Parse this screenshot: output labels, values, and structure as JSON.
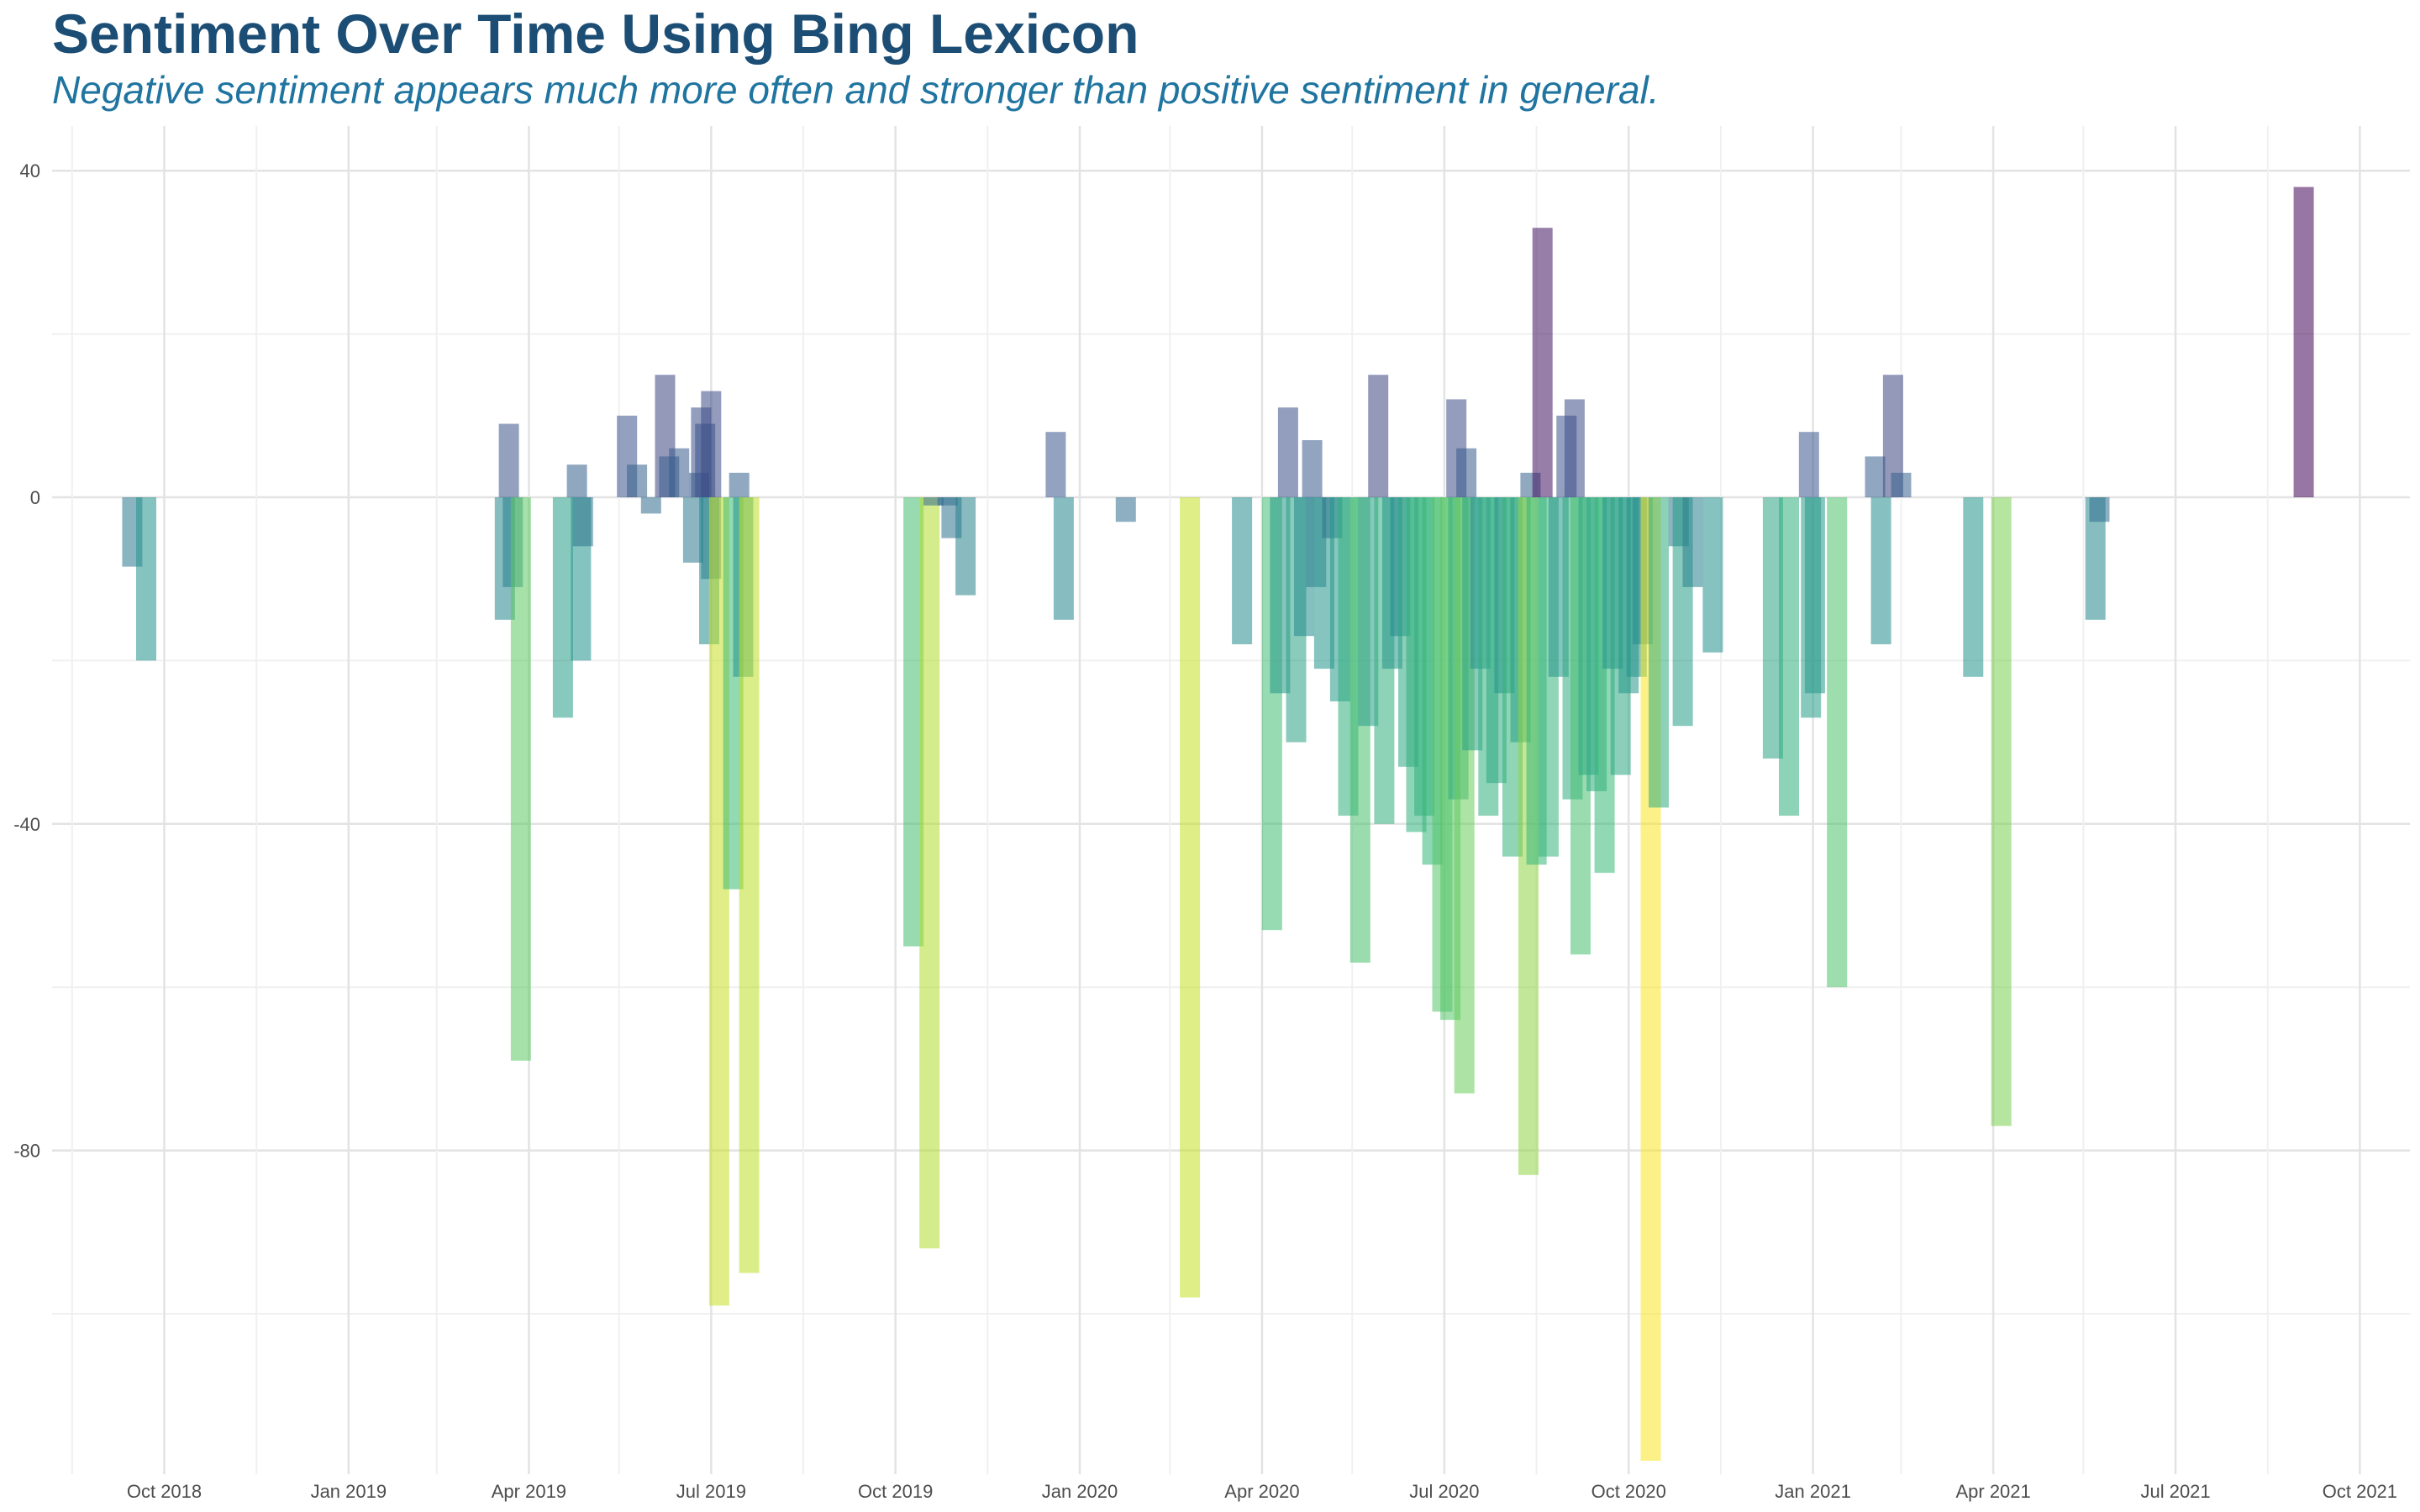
{
  "chart_data": {
    "type": "bar",
    "title": "Sentiment Over Time Using Bing Lexicon",
    "subtitle": "Negative sentiment appears much more often and stronger than positive sentiment in general.",
    "xlabel": "",
    "ylabel": "",
    "x_ticks": [
      "Oct 2018",
      "Jan 2019",
      "Apr 2019",
      "Jul 2019",
      "Oct 2019",
      "Jan 2020",
      "Apr 2020",
      "Jul 2020",
      "Oct 2020",
      "Jan 2021",
      "Apr 2021",
      "Jul 2021",
      "Oct 2021"
    ],
    "y_ticks": [
      "40",
      "0",
      "-40",
      "-80"
    ],
    "ylim": [
      -120,
      45
    ],
    "xlim": [
      "2018-08-06",
      "2021-10-26"
    ],
    "grid": true,
    "legend": "none",
    "colors": [
      "#440154",
      "#3b528b",
      "#21918c",
      "#5ec962",
      "#fde725"
    ],
    "values_by_date": [
      [
        "2018-09-15",
        -8.5
      ],
      [
        "2018-09-22",
        -20
      ],
      [
        "2019-03-20",
        -15
      ],
      [
        "2019-03-22",
        9
      ],
      [
        "2019-03-24",
        -11
      ],
      [
        "2019-03-28",
        -69
      ],
      [
        "2019-04-18",
        -27
      ],
      [
        "2019-04-25",
        4
      ],
      [
        "2019-04-27",
        -20
      ],
      [
        "2019-04-28",
        -6
      ],
      [
        "2019-05-20",
        10
      ],
      [
        "2019-05-25",
        4
      ],
      [
        "2019-06-01",
        -2
      ],
      [
        "2019-06-08",
        15
      ],
      [
        "2019-06-10",
        5
      ],
      [
        "2019-06-15",
        6
      ],
      [
        "2019-06-22",
        -8
      ],
      [
        "2019-06-25",
        3
      ],
      [
        "2019-06-26",
        11
      ],
      [
        "2019-06-28",
        9
      ],
      [
        "2019-07-01",
        13
      ],
      [
        "2019-06-30",
        -18
      ],
      [
        "2019-07-01",
        -10
      ],
      [
        "2019-07-05",
        -99
      ],
      [
        "2019-07-12",
        -48
      ],
      [
        "2019-07-15",
        3
      ],
      [
        "2019-07-17",
        -22
      ],
      [
        "2019-07-20",
        -95
      ],
      [
        "2019-10-10",
        -55
      ],
      [
        "2019-10-18",
        -92
      ],
      [
        "2019-10-20",
        -1
      ],
      [
        "2019-10-27",
        -1
      ],
      [
        "2019-10-29",
        -5
      ],
      [
        "2019-11-05",
        -12
      ],
      [
        "2019-12-20",
        8
      ],
      [
        "2019-12-24",
        -15
      ],
      [
        "2020-01-24",
        -3
      ],
      [
        "2020-02-25",
        -98
      ],
      [
        "2020-03-22",
        -18
      ],
      [
        "2020-04-06",
        -53
      ],
      [
        "2020-04-10",
        -24
      ],
      [
        "2020-04-14",
        11
      ],
      [
        "2020-04-18",
        -30
      ],
      [
        "2020-04-22",
        -17
      ],
      [
        "2020-04-26",
        7
      ],
      [
        "2020-04-28",
        -11
      ],
      [
        "2020-05-02",
        -21
      ],
      [
        "2020-05-06",
        -5
      ],
      [
        "2020-05-10",
        -25
      ],
      [
        "2020-05-14",
        -39
      ],
      [
        "2020-05-20",
        -57
      ],
      [
        "2020-05-24",
        -28
      ],
      [
        "2020-05-29",
        15
      ],
      [
        "2020-06-01",
        -40
      ],
      [
        "2020-06-05",
        -21
      ],
      [
        "2020-06-09",
        -17
      ],
      [
        "2020-06-13",
        -33
      ],
      [
        "2020-06-17",
        -41
      ],
      [
        "2020-06-21",
        -39
      ],
      [
        "2020-06-25",
        -45
      ],
      [
        "2020-06-30",
        -63
      ],
      [
        "2020-07-04",
        -64
      ],
      [
        "2020-07-07",
        12
      ],
      [
        "2020-07-08",
        -37
      ],
      [
        "2020-07-11",
        -73
      ],
      [
        "2020-07-12",
        6
      ],
      [
        "2020-07-15",
        -31
      ],
      [
        "2020-07-19",
        -21
      ],
      [
        "2020-07-23",
        -39
      ],
      [
        "2020-07-27",
        -35
      ],
      [
        "2020-07-31",
        -24
      ],
      [
        "2020-08-04",
        -44
      ],
      [
        "2020-08-08",
        -30
      ],
      [
        "2020-08-12",
        -83
      ],
      [
        "2020-08-13",
        3
      ],
      [
        "2020-08-16",
        -45
      ],
      [
        "2020-08-19",
        33
      ],
      [
        "2020-08-22",
        -44
      ],
      [
        "2020-08-27",
        -22
      ],
      [
        "2020-08-31",
        10
      ],
      [
        "2020-09-03",
        -37
      ],
      [
        "2020-09-04",
        12
      ],
      [
        "2020-09-07",
        -56
      ],
      [
        "2020-09-11",
        -34
      ],
      [
        "2020-09-15",
        -36
      ],
      [
        "2020-09-19",
        -46
      ],
      [
        "2020-09-23",
        -21
      ],
      [
        "2020-09-27",
        -34
      ],
      [
        "2020-10-01",
        -24
      ],
      [
        "2020-10-05",
        -22
      ],
      [
        "2020-10-08",
        -18
      ],
      [
        "2020-10-12",
        -118
      ],
      [
        "2020-10-16",
        -38
      ],
      [
        "2020-10-26",
        -6
      ],
      [
        "2020-10-28",
        -28
      ],
      [
        "2020-11-02",
        -11
      ],
      [
        "2020-11-12",
        -19
      ],
      [
        "2020-12-12",
        -32
      ],
      [
        "2020-12-20",
        -39
      ],
      [
        "2020-12-30",
        8
      ],
      [
        "2020-12-31",
        -27
      ],
      [
        "2021-01-02",
        -24
      ],
      [
        "2021-01-13",
        -60
      ],
      [
        "2021-02-01",
        5
      ],
      [
        "2021-02-04",
        -18
      ],
      [
        "2021-02-10",
        15
      ],
      [
        "2021-02-14",
        3
      ],
      [
        "2021-03-22",
        -22
      ],
      [
        "2021-04-05",
        -77
      ],
      [
        "2021-05-22",
        -15
      ],
      [
        "2021-05-24",
        -3
      ],
      [
        "2021-09-03",
        38
      ]
    ]
  }
}
